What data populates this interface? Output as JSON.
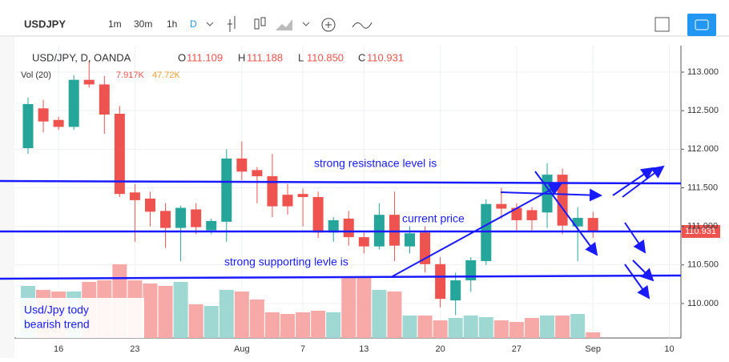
{
  "toolbar": {
    "symbol": "USDJPY",
    "intervals": [
      "1m",
      "30m",
      "1h",
      "D"
    ]
  },
  "legend": {
    "symbol": "USD/JPY, D, OANDA",
    "fields": [
      {
        "key": "O",
        "value": "111.109"
      },
      {
        "key": "H",
        "value": "111.188"
      },
      {
        "key": "L",
        "value": "110.850"
      },
      {
        "key": "C",
        "value": "110.931"
      }
    ],
    "volume": "Vol (20)",
    "volume_value": "7.917K",
    "volume_ma": "47.72K",
    "last_price_label": "110.931"
  },
  "annotations": {
    "resistance": "strong resistnace level is",
    "current": "current price",
    "support": "strong supporting levle is",
    "note": [
      "Usd/Jpy tody",
      "bearish trend"
    ]
  },
  "chart_data": {
    "type": "candlestick",
    "up_color": "#26a69a",
    "down_color": "#ef5350",
    "up_volume_color": "#9fd8d2",
    "down_volume_color": "#f6a9a7",
    "grid": true,
    "categories": [
      null,
      null,
      "16",
      null,
      null,
      null,
      null,
      "23",
      null,
      null,
      null,
      null,
      null,
      null,
      "Aug",
      null,
      null,
      null,
      "7",
      null,
      null,
      null,
      "13",
      null,
      null,
      null,
      null,
      "20",
      null,
      null,
      null,
      null,
      "27",
      null,
      null,
      null,
      null,
      "Sep",
      null,
      null,
      null,
      null,
      "10"
    ],
    "open": [
      112.014,
      112.53,
      112.38,
      112.29,
      112.9,
      112.84,
      112.46,
      111.44,
      111.36,
      111.2,
      110.98,
      111.22,
      110.95,
      111.06,
      111.88,
      111.73,
      111.65,
      111.41,
      111.42,
      111.38,
      110.92,
      111.1,
      110.86,
      110.74,
      111.15,
      110.74,
      110.92,
      110.51,
      110.04,
      110.3,
      110.55,
      111.29,
      111.24,
      111.21,
      111.18,
      111.67,
      111.0,
      111.109,
      null,
      null,
      null,
      null,
      null
    ],
    "high": [
      112.67,
      112.64,
      112.42,
      112.96,
      113.15,
      112.95,
      112.56,
      111.55,
      111.45,
      111.3,
      111.27,
      111.3,
      111.1,
      112.0,
      112.1,
      111.77,
      111.94,
      111.55,
      111.49,
      111.45,
      111.12,
      111.2,
      110.92,
      111.3,
      111.45,
      111.0,
      111.0,
      110.6,
      110.4,
      110.6,
      111.35,
      111.5,
      111.3,
      111.25,
      111.82,
      111.75,
      111.25,
      111.188,
      null,
      null,
      null,
      null,
      null
    ],
    "low": [
      111.94,
      112.22,
      112.25,
      112.25,
      112.8,
      112.2,
      111.38,
      110.8,
      111.0,
      110.72,
      110.55,
      110.9,
      110.9,
      110.8,
      111.6,
      111.3,
      111.12,
      111.15,
      111.0,
      110.85,
      110.8,
      110.75,
      110.65,
      110.7,
      110.55,
      110.65,
      110.4,
      109.95,
      109.85,
      110.15,
      110.5,
      111.1,
      110.95,
      110.95,
      110.98,
      110.9,
      110.55,
      110.85,
      null,
      null,
      null,
      null,
      null
    ],
    "close": [
      112.585,
      112.36,
      112.29,
      112.9,
      112.84,
      112.45,
      111.42,
      111.34,
      111.19,
      110.98,
      111.24,
      110.99,
      111.07,
      111.88,
      111.71,
      111.65,
      111.26,
      111.26,
      111.38,
      110.92,
      111.08,
      110.86,
      110.74,
      111.15,
      110.75,
      110.91,
      110.51,
      110.06,
      110.3,
      110.56,
      111.29,
      111.23,
      111.08,
      111.08,
      111.67,
      111.01,
      111.11,
      110.931,
      null,
      null,
      null,
      null,
      null
    ],
    "volume": [
      73500,
      67900,
      65600,
      65600,
      79200,
      81400,
      104000,
      81400,
      76900,
      73500,
      79200,
      47500,
      45200,
      67900,
      65600,
      54300,
      36200,
      33900,
      36200,
      38500,
      36200,
      84800,
      84800,
      67900,
      65600,
      31700,
      31700,
      24900,
      28300,
      31700,
      29400,
      24900,
      22600,
      28300,
      31700,
      31700,
      33900,
      7917,
      null,
      null,
      null,
      null,
      null
    ],
    "ylim": [
      109.553,
      113.343
    ],
    "yticks": [
      {
        "value": 110,
        "label": "110.000"
      },
      {
        "value": 110.5,
        "label": "110.500"
      },
      {
        "value": 111,
        "label": "111.000"
      },
      {
        "value": 111.5,
        "label": "111.500"
      },
      {
        "value": 112,
        "label": "112.000"
      },
      {
        "value": 112.5,
        "label": "112.500"
      },
      {
        "value": 113,
        "label": "113.000"
      }
    ]
  }
}
